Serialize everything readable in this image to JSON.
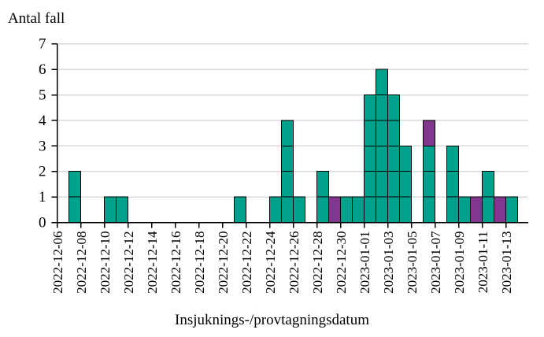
{
  "page": {
    "background": "#ffffff"
  },
  "chart": {
    "y_axis_title": "Antal fall",
    "x_axis_title": "Insjuknings-/provtagningsdatum",
    "colors": {
      "primary_bar": "#00A18C",
      "secondary_bar": "#82378F",
      "bar_outline": "#000000",
      "gridline": "#D9D9D9",
      "axis": "#000000"
    }
  },
  "chart_data": {
    "type": "bar",
    "stacked": true,
    "title": "",
    "xlabel": "Insjuknings-/provtagningsdatum",
    "ylabel": "Antal fall",
    "ylim": [
      0,
      7
    ],
    "y_ticks": [
      0,
      1,
      2,
      3,
      4,
      5,
      6,
      7
    ],
    "grid": true,
    "legend_position": "none",
    "x_tick_interval": 2,
    "x_tick_labels": [
      "2022-12-06",
      "2022-12-08",
      "2022-12-10",
      "2022-12-12",
      "2022-12-14",
      "2022-12-16",
      "2022-12-18",
      "2022-12-20",
      "2022-12-22",
      "2022-12-24",
      "2022-12-26",
      "2022-12-28",
      "2022-12-30",
      "2023-01-01",
      "2023-01-03",
      "2023-01-05",
      "2023-01-07",
      "2023-01-09",
      "2023-01-11",
      "2023-01-13"
    ],
    "categories": [
      "2022-12-06",
      "2022-12-07",
      "2022-12-08",
      "2022-12-09",
      "2022-12-10",
      "2022-12-11",
      "2022-12-12",
      "2022-12-13",
      "2022-12-14",
      "2022-12-15",
      "2022-12-16",
      "2022-12-17",
      "2022-12-18",
      "2022-12-19",
      "2022-12-20",
      "2022-12-21",
      "2022-12-22",
      "2022-12-23",
      "2022-12-24",
      "2022-12-25",
      "2022-12-26",
      "2022-12-27",
      "2022-12-28",
      "2022-12-29",
      "2022-12-30",
      "2022-12-31",
      "2023-01-01",
      "2023-01-02",
      "2023-01-03",
      "2023-01-04",
      "2023-01-05",
      "2023-01-06",
      "2023-01-07",
      "2023-01-08",
      "2023-01-09",
      "2023-01-10",
      "2023-01-11",
      "2023-01-12",
      "2023-01-13"
    ],
    "series": [
      {
        "name": "fall-teal",
        "color": "#00A18C",
        "values": [
          0,
          2,
          0,
          0,
          1,
          1,
          0,
          0,
          0,
          0,
          0,
          0,
          0,
          0,
          0,
          1,
          0,
          0,
          1,
          4,
          1,
          0,
          2,
          0,
          1,
          1,
          5,
          6,
          5,
          3,
          0,
          3,
          0,
          3,
          1,
          0,
          2,
          0,
          1
        ]
      },
      {
        "name": "fall-purple",
        "color": "#82378F",
        "values": [
          0,
          0,
          0,
          0,
          0,
          0,
          0,
          0,
          0,
          0,
          0,
          0,
          0,
          0,
          0,
          0,
          0,
          0,
          0,
          0,
          0,
          0,
          0,
          1,
          0,
          0,
          0,
          0,
          0,
          0,
          0,
          1,
          0,
          0,
          0,
          1,
          0,
          1,
          0
        ]
      }
    ]
  }
}
